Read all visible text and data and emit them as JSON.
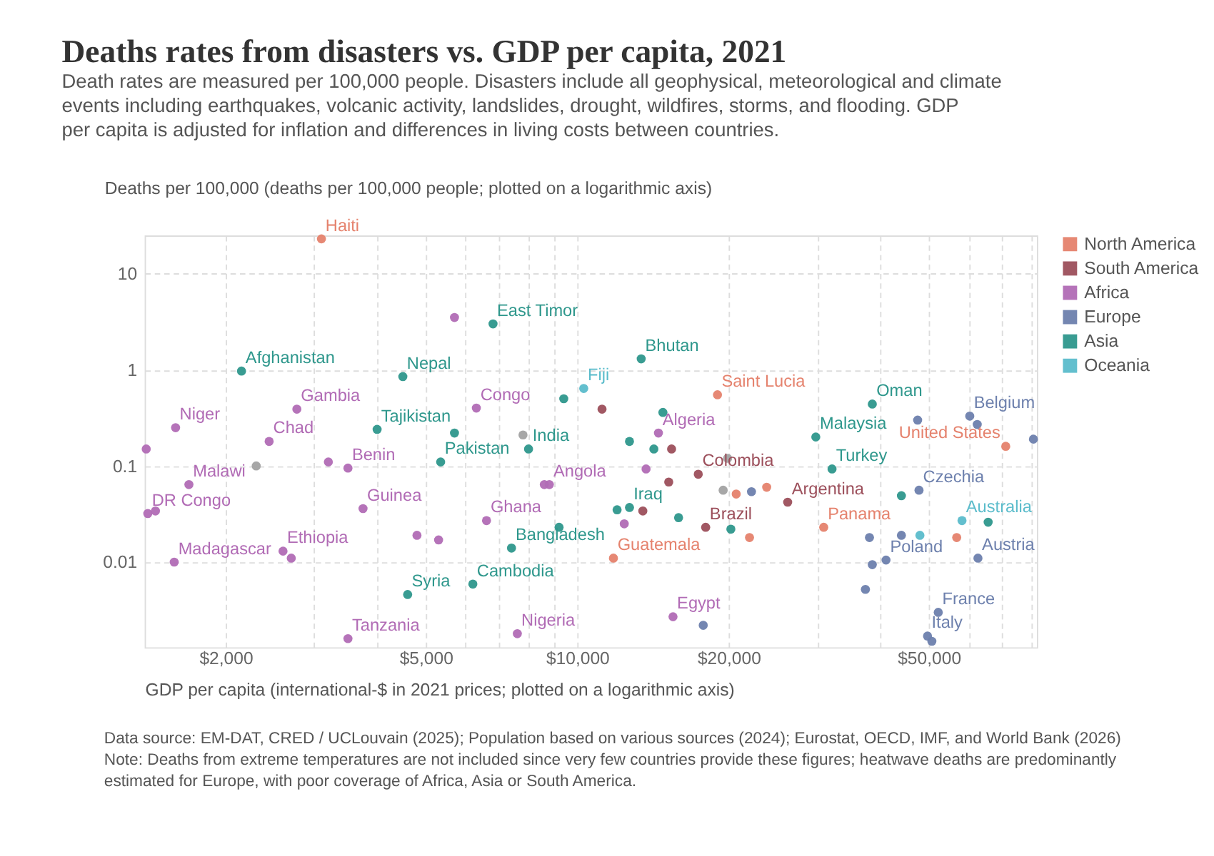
{
  "chart_data": {
    "type": "scatter",
    "title": "Deaths rates from disasters vs. GDP per capita, 2021",
    "subtitle": "Death rates are measured per 100,000 people. Disasters include all geophysical, meteorological and climate events including earthquakes, volcanic activity, landslides, drought, wildfires, storms, and flooding. GDP per capita is adjusted for inflation and differences in living costs between countries.",
    "ylabel": "Deaths per 100,000 (deaths per 100,000 people; plotted on a logarithmic axis)",
    "xlabel": "GDP per capita (international-$ in 2021 prices; plotted on a logarithmic axis)",
    "log": "xy",
    "grid": true,
    "legend": "top right",
    "marker": "circle",
    "xlim": [
      1380,
      82000
    ],
    "ylim": [
      0.0013,
      25
    ],
    "xticks": [
      {
        "value": 2000,
        "label": "$2,000"
      },
      {
        "value": 3000,
        "label": null
      },
      {
        "value": 4000,
        "label": null
      },
      {
        "value": 5000,
        "label": "$5,000"
      },
      {
        "value": 6000,
        "label": null
      },
      {
        "value": 7000,
        "label": null
      },
      {
        "value": 8000,
        "label": null
      },
      {
        "value": 9000,
        "label": null
      },
      {
        "value": 10000,
        "label": "$10,000"
      },
      {
        "value": 20000,
        "label": "$20,000"
      },
      {
        "value": 30000,
        "label": null
      },
      {
        "value": 40000,
        "label": null
      },
      {
        "value": 50000,
        "label": "$50,000"
      },
      {
        "value": 60000,
        "label": null
      },
      {
        "value": 70000,
        "label": null
      },
      {
        "value": 80000,
        "label": null
      }
    ],
    "yticks": [
      0.01,
      0.1,
      1,
      10
    ],
    "series": [
      {
        "name": "North America",
        "color": "#e5826d",
        "x": [
          3100,
          19000,
          71100,
          22000,
          11800,
          20700,
          23800,
          30900,
          56800
        ],
        "values": [
          23,
          0.55,
          0.16,
          0.018,
          0.011,
          0.051,
          0.06,
          0.023,
          0.018
        ]
      },
      {
        "name": "South America",
        "color": "#9c4f5b",
        "x": [
          11200,
          15400,
          15200,
          17400,
          13500,
          18000,
          26200
        ],
        "values": [
          0.39,
          0.15,
          0.068,
          0.082,
          0.034,
          0.023,
          0.042
        ]
      },
      {
        "name": "Africa",
        "color": "#b16bb5",
        "x": [
          5700,
          2770,
          6300,
          1590,
          2440,
          1390,
          3200,
          3500,
          1690,
          8600,
          8800,
          1400,
          1450,
          3750,
          6600,
          4800,
          5300,
          1580,
          2600,
          2700,
          3500,
          7600,
          14500,
          13700,
          12400,
          15500
        ],
        "values": [
          3.5,
          0.39,
          0.4,
          0.25,
          0.18,
          0.15,
          0.11,
          0.095,
          0.064,
          0.064,
          0.064,
          0.032,
          0.034,
          0.036,
          0.027,
          0.019,
          0.017,
          0.01,
          0.013,
          0.011,
          0.0016,
          0.0018,
          0.22,
          0.093,
          0.025,
          0.0027
        ]
      },
      {
        "name": "Europe",
        "color": "#6d80ad",
        "x": [
          47500,
          60300,
          62400,
          80700,
          22200,
          47800,
          38100,
          44100,
          41100,
          38600,
          62600,
          37400,
          52200,
          49700,
          50700,
          17800
        ],
        "values": [
          0.3,
          0.33,
          0.27,
          0.19,
          0.054,
          0.056,
          0.018,
          0.019,
          0.0105,
          0.0094,
          0.011,
          0.0052,
          0.003,
          0.0017,
          0.0015,
          0.0022
        ]
      },
      {
        "name": "Asia",
        "color": "#2e978c",
        "x": [
          6800,
          2150,
          4500,
          9400,
          4000,
          5700,
          8000,
          5350,
          9200,
          7400,
          6200,
          4600,
          13400,
          14800,
          12700,
          14200,
          38600,
          29800,
          32100,
          12700,
          12000,
          15900,
          20200,
          44100,
          65600
        ],
        "values": [
          3.0,
          0.97,
          0.85,
          0.5,
          0.24,
          0.22,
          0.15,
          0.11,
          0.023,
          0.014,
          0.0059,
          0.0046,
          1.3,
          0.36,
          0.18,
          0.15,
          0.44,
          0.2,
          0.093,
          0.037,
          0.035,
          0.029,
          0.022,
          0.049,
          0.026
        ]
      },
      {
        "name": "Oceania",
        "color": "#5bbccb",
        "x": [
          10300,
          48000,
          58200
        ],
        "values": [
          0.64,
          0.019,
          0.027
        ]
      },
      {
        "color": "#a2a2a2",
        "x": [
          7800,
          2300,
          19900,
          19500
        ],
        "values": [
          0.21,
          0.1,
          0.12,
          0.056
        ]
      }
    ],
    "annotations": [
      {
        "text": "Haiti",
        "x": 3100,
        "y": 23
      },
      {
        "text": "East Timor",
        "x": 6800,
        "y": 3.0
      },
      {
        "text": "Afghanistan",
        "x": 2150,
        "y": 0.97
      },
      {
        "text": "Nepal",
        "x": 4500,
        "y": 0.85
      },
      {
        "text": "Gambia",
        "x": 2770,
        "y": 0.39
      },
      {
        "text": "Congo",
        "x": 6300,
        "y": 0.4
      },
      {
        "text": "Niger",
        "x": 1590,
        "y": 0.25
      },
      {
        "text": "Tajikistan",
        "x": 4000,
        "y": 0.24
      },
      {
        "text": "Chad",
        "x": 2440,
        "y": 0.18
      },
      {
        "text": "India",
        "x": 8000,
        "y": 0.15
      },
      {
        "text": "Pakistan",
        "x": 5350,
        "y": 0.11
      },
      {
        "text": "Benin",
        "x": 3500,
        "y": 0.095
      },
      {
        "text": "Malawi",
        "x": 1690,
        "y": 0.064
      },
      {
        "text": "Angola",
        "x": 8800,
        "y": 0.064
      },
      {
        "text": "DR Congo",
        "x": 1400,
        "y": 0.032
      },
      {
        "text": "Guinea",
        "x": 3750,
        "y": 0.036
      },
      {
        "text": "Ghana",
        "x": 6600,
        "y": 0.027
      },
      {
        "text": "Bangladesh",
        "x": 7400,
        "y": 0.014
      },
      {
        "text": "Madagascar",
        "x": 1580,
        "y": 0.01
      },
      {
        "text": "Ethiopia",
        "x": 2600,
        "y": 0.013
      },
      {
        "text": "Cambodia",
        "x": 6200,
        "y": 0.0059
      },
      {
        "text": "Syria",
        "x": 4600,
        "y": 0.0046
      },
      {
        "text": "Tanzania",
        "x": 3500,
        "y": 0.0016
      },
      {
        "text": "Nigeria",
        "x": 7600,
        "y": 0.0018
      },
      {
        "text": "Bhutan",
        "x": 13400,
        "y": 1.3
      },
      {
        "text": "Fiji",
        "x": 10300,
        "y": 0.64
      },
      {
        "text": "Saint Lucia",
        "x": 19000,
        "y": 0.55
      },
      {
        "text": "Algeria",
        "x": 14500,
        "y": 0.22
      },
      {
        "text": "Oman",
        "x": 38600,
        "y": 0.44
      },
      {
        "text": "Malaysia",
        "x": 29800,
        "y": 0.2
      },
      {
        "text": "Belgium",
        "x": 60300,
        "y": 0.33
      },
      {
        "text": "United States",
        "x": 71100,
        "y": 0.16
      },
      {
        "text": "Turkey",
        "x": 32100,
        "y": 0.093
      },
      {
        "text": "Colombia",
        "x": 17400,
        "y": 0.082
      },
      {
        "text": "Iraq",
        "x": 12700,
        "y": 0.037
      },
      {
        "text": "Brazil",
        "x": 18000,
        "y": 0.023
      },
      {
        "text": "Guatemala",
        "x": 11800,
        "y": 0.011
      },
      {
        "text": "Argentina",
        "x": 26200,
        "y": 0.042
      },
      {
        "text": "Panama",
        "x": 30900,
        "y": 0.023
      },
      {
        "text": "Czechia",
        "x": 47800,
        "y": 0.056
      },
      {
        "text": "Australia",
        "x": 58200,
        "y": 0.027
      },
      {
        "text": "Poland",
        "x": 41100,
        "y": 0.0105
      },
      {
        "text": "Austria",
        "x": 62600,
        "y": 0.011
      },
      {
        "text": "France",
        "x": 52200,
        "y": 0.003
      },
      {
        "text": "Italy",
        "x": 49700,
        "y": 0.0017
      },
      {
        "text": "Egypt",
        "x": 15500,
        "y": 0.0027
      },
      "Data source: EM-DAT, CRED / UCLouvain (2025); Population based on various sources (2024); Eurostat, OECD, IMF, and World Bank (2026)",
      "Note: Deaths from extreme temperatures are not included since very few countries provide these figures; heatwave deaths are predominantly estimated for Europe, with poor coverage of Africa, Asia or South America."
    ]
  }
}
